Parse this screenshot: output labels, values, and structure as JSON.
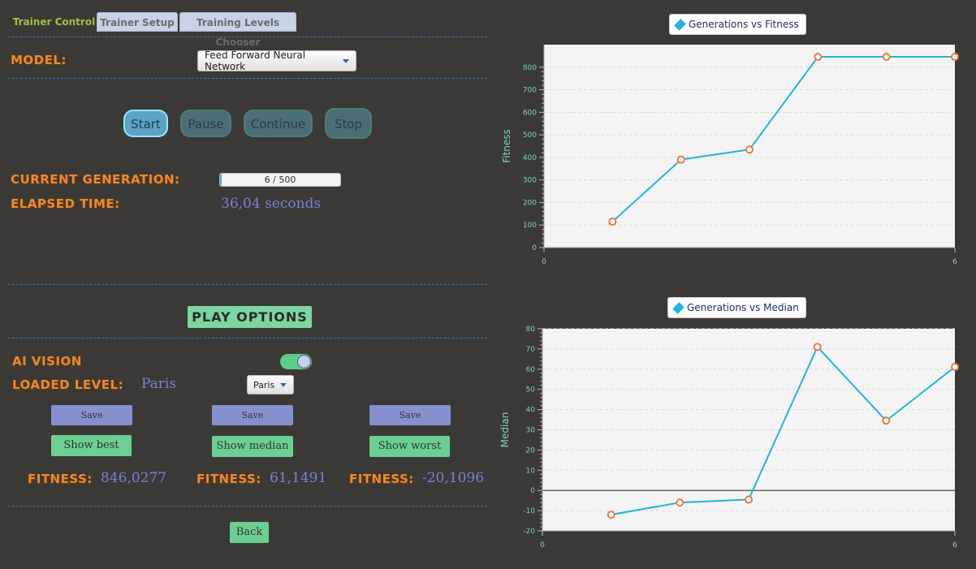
{
  "tabs": [
    {
      "label": "Trainer Control",
      "active": true
    },
    {
      "label": "Trainer Setup",
      "active": false
    },
    {
      "label": "Training Levels Chooser",
      "active": false
    }
  ],
  "model": {
    "label": "MODEL:",
    "selected": "Feed Forward Neural Network"
  },
  "controls": {
    "start": "Start",
    "pause": "Pause",
    "continue": "Continue",
    "stop": "Stop"
  },
  "generation": {
    "label": "CURRENT GENERATION:",
    "progress_text": "6 / 500",
    "current": 6,
    "total": 500
  },
  "elapsed": {
    "label": "ELAPSED TIME:",
    "value": "36,04 seconds"
  },
  "play_options": {
    "title": "PLAY OPTIONS",
    "ai_vision_label": "AI VISION",
    "ai_vision_on": true,
    "loaded_level_label": "LOADED LEVEL:",
    "loaded_level_value": "Paris",
    "level_select": "Paris",
    "save_label": "Save",
    "show_best": "Show best",
    "show_median": "Show median",
    "show_worst": "Show worst",
    "fitness_label": "FITNESS:",
    "fitness_best": "846,0277",
    "fitness_median": "61,1491",
    "fitness_worst": "-20,1096",
    "back": "Back"
  },
  "colors": {
    "accent_orange": "#ee8a2c",
    "line": "#21b6d8",
    "marker": "#f07840",
    "value_blue": "#7a80d4",
    "button_green": "#6ccf92"
  },
  "chart_data": [
    {
      "type": "line",
      "legend": "Generations vs Fitness",
      "xlabel": "",
      "ylabel": "Fitness",
      "xlim": [
        0,
        6
      ],
      "ylim": [
        0,
        900
      ],
      "x_ticks": [
        "0",
        "6"
      ],
      "y_ticks": [
        "0",
        "100",
        "200",
        "300",
        "400",
        "500",
        "600",
        "700",
        "800"
      ],
      "x": [
        1,
        2,
        3,
        4,
        5,
        6
      ],
      "y": [
        115,
        390,
        435,
        846,
        846,
        846
      ]
    },
    {
      "type": "line",
      "legend": "Generations vs Median",
      "xlabel": "",
      "ylabel": "Median",
      "xlim": [
        0,
        6
      ],
      "ylim": [
        -20,
        80
      ],
      "x_ticks": [
        "0",
        "6"
      ],
      "y_ticks": [
        "-20",
        "-10",
        "0",
        "10",
        "20",
        "30",
        "40",
        "50",
        "60",
        "70",
        "80"
      ],
      "x": [
        1,
        2,
        3,
        4,
        5,
        6
      ],
      "y": [
        -12,
        -6,
        -4.5,
        71,
        34.5,
        61.1
      ]
    }
  ]
}
